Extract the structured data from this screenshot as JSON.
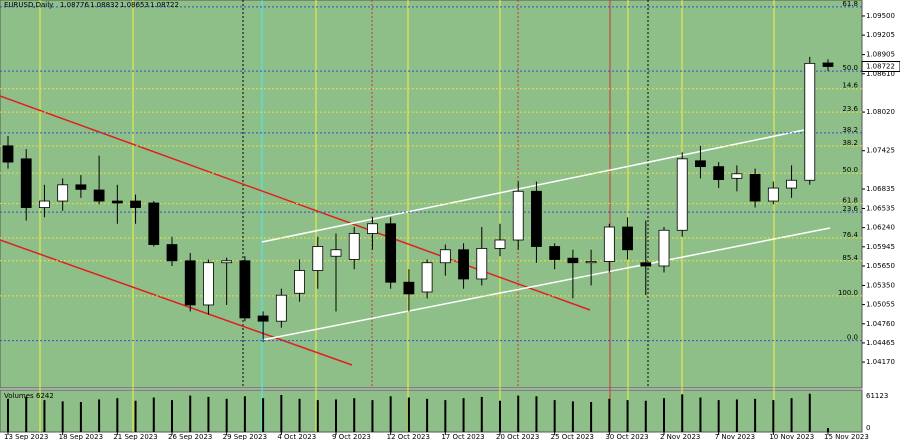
{
  "chart_data": {
    "type": "candlestick",
    "title": "EURUSD,Daily",
    "categories": [
      "13 Sep 2023",
      null,
      null,
      "18 Sep 2023",
      null,
      null,
      "21 Sep 2023",
      null,
      null,
      "26 Sep 2023",
      null,
      null,
      "29 Sep 2023",
      null,
      null,
      "4 Oct 2023",
      null,
      null,
      "9 Oct 2023",
      null,
      null,
      "12 Oct 2023",
      null,
      null,
      "17 Oct 2023",
      null,
      null,
      "20 Oct 2023",
      null,
      null,
      "25 Oct 2023",
      null,
      null,
      "30 Oct 2023",
      null,
      null,
      "2 Nov 2023",
      null,
      null,
      "7 Nov 2023",
      null,
      null,
      "10 Nov 2023",
      null,
      null,
      "15 Nov 2023"
    ],
    "open": [
      1.075,
      1.073,
      1.0655,
      1.0665,
      1.069,
      1.0682,
      1.0665,
      1.0665,
      1.0662,
      1.0598,
      1.0573,
      1.0505,
      1.057,
      1.0573,
      1.0488,
      1.048,
      1.0523,
      1.0558,
      1.058,
      1.0575,
      1.0615,
      1.063,
      1.054,
      1.0525,
      1.057,
      1.059,
      1.0545,
      1.0592,
      1.0605,
      1.068,
      1.0595,
      1.0577,
      1.057,
      1.0572,
      1.0625,
      1.057,
      1.0565,
      1.062,
      1.0727,
      1.0718,
      1.07,
      1.0706,
      1.0665,
      1.0685,
      1.0697,
      1.08776
    ],
    "high": [
      1.0765,
      1.0745,
      1.069,
      1.07,
      1.0705,
      1.0735,
      1.069,
      1.0675,
      1.0665,
      1.061,
      1.0585,
      1.0575,
      1.0578,
      1.058,
      1.0495,
      1.053,
      1.0575,
      1.061,
      1.0615,
      1.0625,
      1.064,
      1.064,
      1.056,
      1.0575,
      1.0598,
      1.06,
      1.0625,
      1.063,
      1.0695,
      1.0695,
      1.06,
      1.059,
      1.059,
      1.063,
      1.064,
      1.0635,
      1.0625,
      1.074,
      1.075,
      1.0725,
      1.072,
      1.0715,
      1.0695,
      1.072,
      1.0887,
      1.08832
    ],
    "low": [
      1.0715,
      1.0635,
      1.064,
      1.065,
      1.067,
      1.066,
      1.063,
      1.063,
      1.0595,
      1.0565,
      1.0495,
      1.049,
      1.0505,
      1.048,
      1.0448,
      1.047,
      1.051,
      1.053,
      1.0495,
      1.056,
      1.059,
      1.053,
      1.0495,
      1.0515,
      1.055,
      1.053,
      1.0535,
      1.058,
      1.059,
      1.057,
      1.056,
      1.0515,
      1.0535,
      1.0555,
      1.0575,
      1.052,
      1.0555,
      1.061,
      1.07,
      1.0685,
      1.068,
      1.0655,
      1.066,
      1.067,
      1.069,
      1.08653
    ],
    "close": [
      1.0725,
      1.0655,
      1.0665,
      1.069,
      1.0683,
      1.0665,
      1.0662,
      1.0655,
      1.0598,
      1.0573,
      1.0505,
      1.057,
      1.0573,
      1.0485,
      1.048,
      1.052,
      1.0558,
      1.0595,
      1.059,
      1.0615,
      1.063,
      1.054,
      1.0522,
      1.057,
      1.059,
      1.0545,
      1.0592,
      1.0605,
      1.068,
      1.0595,
      1.0575,
      1.057,
      1.0572,
      1.0625,
      1.059,
      1.0565,
      1.062,
      1.073,
      1.0718,
      1.0698,
      1.0707,
      1.0665,
      1.0685,
      1.0697,
      1.0877,
      1.08722
    ],
    "up_color": "#ffffff",
    "down_color": "#000000",
    "ylim": [
      1.03771,
      1.09746
    ],
    "yticks": [
      {
        "value": 1.095,
        "label": "1.09500"
      },
      1.09205,
      1.08905,
      {
        "value": 1.0861,
        "label": "1.08610"
      },
      {
        "value": 1.0802,
        "label": "1.08020"
      },
      1.07425,
      1.06835,
      1.06535,
      {
        "value": 1.0624,
        "label": "1.06240"
      },
      1.05945,
      {
        "value": 1.0565,
        "label": "1.05650"
      },
      {
        "value": 1.0535,
        "label": "1.05350"
      },
      1.05055,
      {
        "value": 1.0476,
        "label": "1.04760"
      },
      1.04465,
      {
        "value": 1.0417,
        "label": "1.04170"
      }
    ],
    "levels": [
      {
        "label": "61.8",
        "value": 1.0964,
        "color": "#3050d0"
      },
      {
        "label": "50.0",
        "value": 1.0865,
        "color": "#3050d0"
      },
      {
        "label": "14.6",
        "value": 1.0838,
        "color": "#e8e040"
      },
      {
        "label": "23.6",
        "value": 1.0802,
        "color": "#e8e040"
      },
      {
        "label": "38.2",
        "value": 1.077,
        "color": "#3050d0"
      },
      {
        "label": "38.2",
        "value": 1.075,
        "color": "#e8e040"
      },
      {
        "label": "50.0",
        "value": 1.0708,
        "color": "#e8e040"
      },
      {
        "label": "61.8",
        "value": 1.0661,
        "color": "#e8e040"
      },
      {
        "label": "23.6",
        "value": 1.0648,
        "color": "#3050d0"
      },
      {
        "label": "76.4",
        "value": 1.0608,
        "color": "#e8e040"
      },
      {
        "label": "85.4",
        "value": 1.0573,
        "color": "#e8e040"
      },
      {
        "label": "100.0",
        "value": 1.0519,
        "color": "#e8e040"
      },
      {
        "label": "0.0",
        "value": 1.045,
        "color": "#3050d0"
      }
    ],
    "volume": {
      "label": "Volumes",
      "values": [
        52000,
        55000,
        50000,
        48000,
        47000,
        51000,
        53000,
        49000,
        54000,
        50000,
        57000,
        55000,
        52000,
        56000,
        53000,
        58000,
        52000,
        50000,
        51000,
        53000,
        50000,
        56000,
        54000,
        52000,
        50000,
        53000,
        55000,
        49000,
        57000,
        56000,
        50000,
        48000,
        47000,
        52000,
        50000,
        49000,
        53000,
        59000,
        54000,
        50000,
        51000,
        52000,
        50000,
        53000,
        60000,
        6242
      ],
      "ylim": [
        0,
        61123
      ],
      "yticks": [
        61123,
        0
      ]
    }
  }
}
